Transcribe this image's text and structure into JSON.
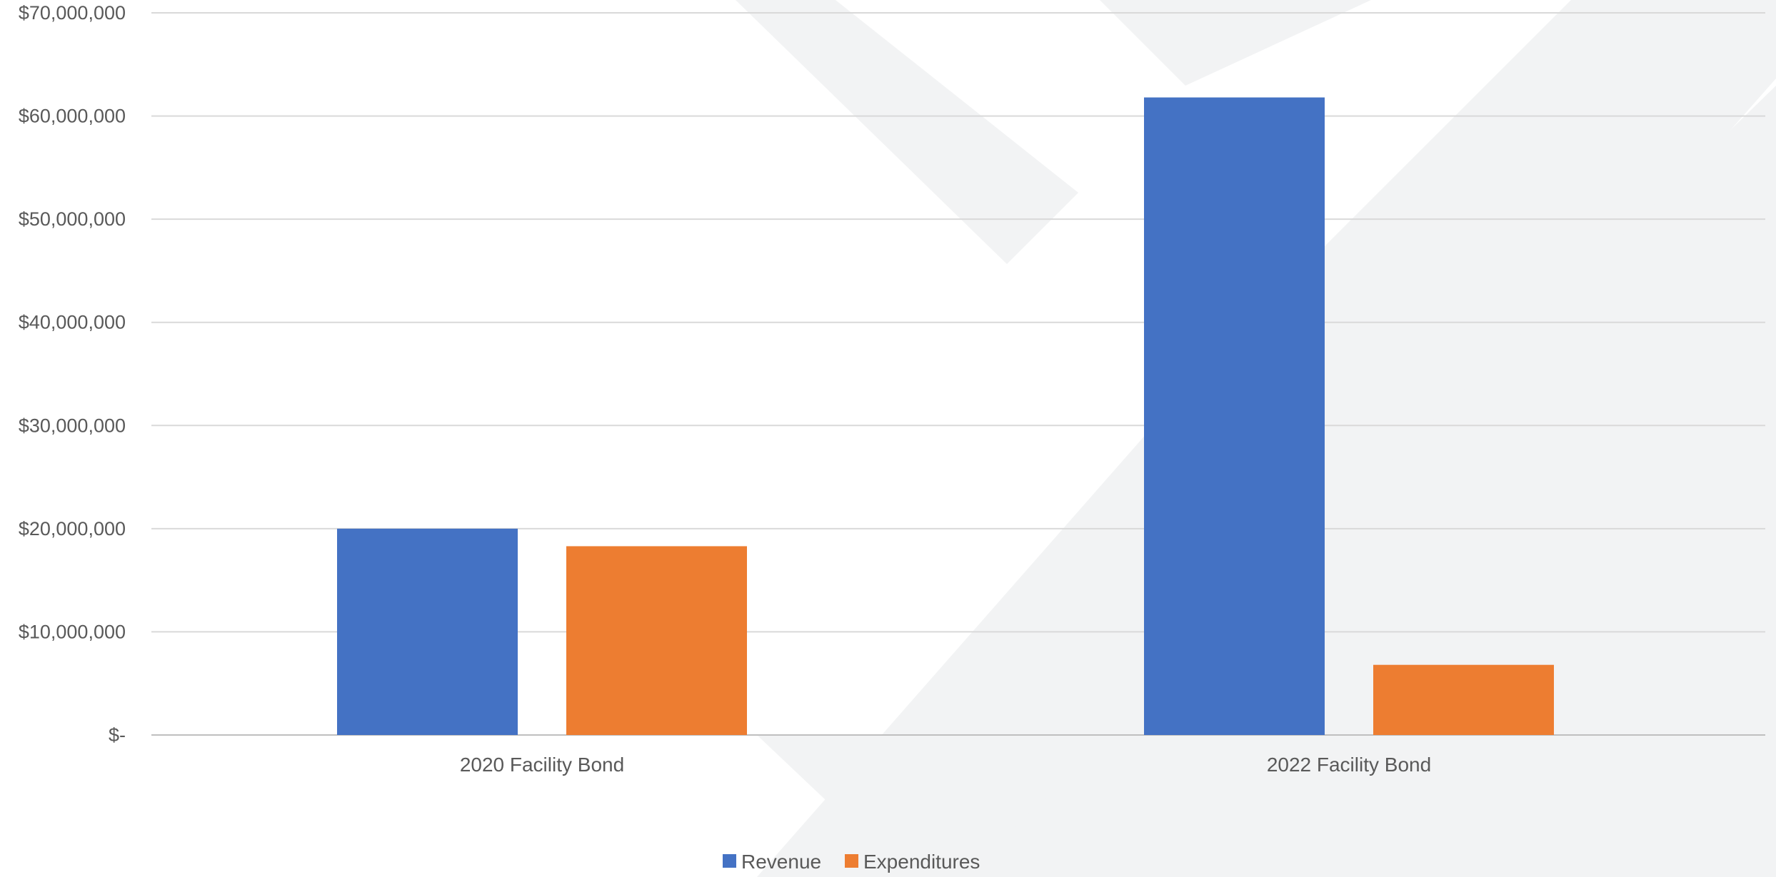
{
  "chart_data": {
    "type": "bar",
    "categories": [
      "2020 Facility Bond",
      "2022 Facility Bond"
    ],
    "series": [
      {
        "name": "Revenue",
        "values": [
          20000000,
          61800000
        ],
        "color": "#4472C4"
      },
      {
        "name": "Expenditures",
        "values": [
          18300000,
          6800000
        ],
        "color": "#ED7D31"
      }
    ],
    "yticks": [
      0,
      10000000,
      20000000,
      30000000,
      40000000,
      50000000,
      60000000,
      70000000
    ],
    "ytick_labels": [
      "$-",
      "$10,000,000",
      "$20,000,000",
      "$30,000,000",
      "$40,000,000",
      "$50,000,000",
      "$60,000,000",
      "$70,000,000"
    ],
    "ylim": [
      0,
      70000000
    ],
    "grid": true,
    "legend_position": "bottom",
    "title": "",
    "xlabel": "",
    "ylabel": ""
  }
}
